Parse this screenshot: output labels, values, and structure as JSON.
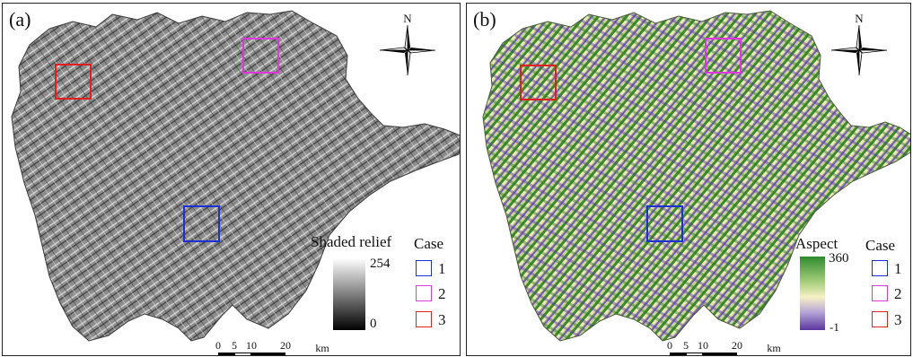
{
  "panels": [
    {
      "label": "(a)",
      "legend_title": "Shaded relief",
      "legend_max": "254",
      "legend_min": "0",
      "case_title": "Case",
      "cases": [
        "1",
        "2",
        "3"
      ],
      "north": "N",
      "scale_ticks": [
        "0",
        "5",
        "10",
        "20"
      ],
      "scale_unit": "km",
      "ramp_colors": [
        "#ffffff",
        "#000000"
      ],
      "map_fill": "#8e8e8e"
    },
    {
      "label": "(b)",
      "legend_title": "Aspect",
      "legend_max": "360",
      "legend_min": "-1",
      "case_title": "Case",
      "cases": [
        "1",
        "2",
        "3"
      ],
      "north": "N",
      "scale_ticks": [
        "0",
        "5",
        "10",
        "20"
      ],
      "scale_unit": "km",
      "ramp_colors": [
        "#2e8b2e",
        "#f6f0c4",
        "#5a36a0"
      ],
      "map_fill": "#9fbd78"
    }
  ],
  "case_colors": {
    "1": "#1f2fd6",
    "2": "#e036e0",
    "3": "#e02020"
  }
}
